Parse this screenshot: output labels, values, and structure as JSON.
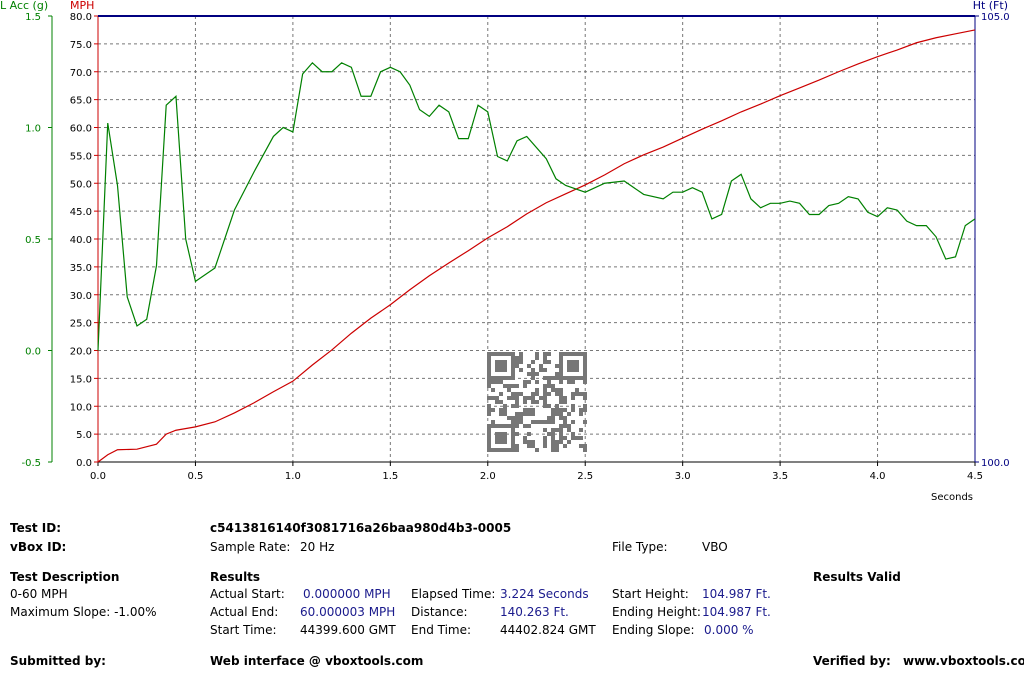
{
  "chart_data": {
    "type": "line",
    "xlabel": "Seconds",
    "ylabel": "MPH",
    "y2label": "L Acc (g)",
    "y3label": "Ht (Ft)",
    "xlim": [
      0,
      4.5
    ],
    "xticks": [
      {
        "value": 0,
        "label": "0.0"
      },
      0.5,
      {
        "value": 1,
        "label": "1.0"
      },
      1.5,
      {
        "value": 2,
        "label": "2.0"
      },
      2.5,
      {
        "value": 3,
        "label": "3.0"
      },
      3.5,
      {
        "value": 4,
        "label": "4.0"
      },
      4.5
    ],
    "ylim": [
      0,
      80
    ],
    "yticks": [
      {
        "value": 0,
        "label": "0.0"
      },
      {
        "value": 5,
        "label": "5.0"
      },
      {
        "value": 10,
        "label": "10.0"
      },
      {
        "value": 15,
        "label": "15.0"
      },
      {
        "value": 20,
        "label": "20.0"
      },
      {
        "value": 25,
        "label": "25.0"
      },
      {
        "value": 30,
        "label": "30.0"
      },
      {
        "value": 35,
        "label": "35.0"
      },
      {
        "value": 40,
        "label": "40.0"
      },
      {
        "value": 45,
        "label": "45.0"
      },
      {
        "value": 50,
        "label": "50.0"
      },
      {
        "value": 55,
        "label": "55.0"
      },
      {
        "value": 60,
        "label": "60.0"
      },
      {
        "value": 65,
        "label": "65.0"
      },
      {
        "value": 70,
        "label": "70.0"
      },
      {
        "value": 75,
        "label": "75.0"
      },
      {
        "value": 80,
        "label": "80.0"
      }
    ],
    "y2lim": [
      -0.5,
      1.5
    ],
    "y2ticks": [
      -0.5,
      {
        "value": 0,
        "label": "0.0"
      },
      0.5,
      {
        "value": 1,
        "label": "1.0"
      },
      1.5
    ],
    "y3lim": [
      100,
      105
    ],
    "y3ticks": [
      {
        "value": 100,
        "label": "100.0"
      },
      {
        "value": 105,
        "label": "105.0"
      }
    ],
    "grid": true,
    "ycolor": "#cc0000",
    "y2color": "#008000",
    "y3color": "#000080",
    "series": [
      {
        "color": "#cc0000",
        "x": [
          0,
          0.05,
          0.1,
          0.2,
          0.3,
          0.35,
          0.4,
          0.5,
          0.6,
          0.7,
          0.8,
          0.9,
          1.0,
          1.1,
          1.2,
          1.3,
          1.4,
          1.5,
          1.6,
          1.7,
          1.8,
          1.9,
          2.0,
          2.1,
          2.2,
          2.3,
          2.4,
          2.5,
          2.6,
          2.7,
          2.8,
          2.9,
          3.0,
          3.1,
          3.2,
          3.3,
          3.4,
          3.5,
          3.6,
          3.7,
          3.8,
          3.9,
          4.0,
          4.1,
          4.2,
          4.3,
          4.4,
          4.5
        ],
        "values": [
          0,
          1.3,
          2.2,
          2.3,
          3.2,
          5.0,
          5.7,
          6.3,
          7.2,
          8.8,
          10.6,
          12.6,
          14.5,
          17.4,
          20.1,
          23.1,
          25.8,
          28.2,
          30.9,
          33.4,
          35.7,
          37.9,
          40.2,
          42.2,
          44.5,
          46.5,
          48.1,
          49.7,
          51.5,
          53.5,
          55.1,
          56.5,
          58.1,
          59.7,
          61.2,
          62.8,
          64.2,
          65.7,
          67.1,
          68.5,
          70.0,
          71.4,
          72.7,
          73.9,
          75.2,
          76.1,
          76.8,
          77.5
        ]
      },
      {
        "color": "#008000",
        "axis": "y2",
        "x": [
          0,
          0.05,
          0.1,
          0.15,
          0.2,
          0.25,
          0.3,
          0.35,
          0.4,
          0.45,
          0.5,
          0.6,
          0.7,
          0.8,
          0.9,
          0.95,
          1.0,
          1.05,
          1.1,
          1.15,
          1.2,
          1.25,
          1.3,
          1.35,
          1.4,
          1.45,
          1.5,
          1.55,
          1.6,
          1.65,
          1.7,
          1.75,
          1.8,
          1.85,
          1.9,
          1.95,
          2.0,
          2.05,
          2.1,
          2.15,
          2.2,
          2.3,
          2.35,
          2.4,
          2.5,
          2.6,
          2.7,
          2.8,
          2.9,
          2.95,
          3.0,
          3.05,
          3.1,
          3.15,
          3.2,
          3.25,
          3.3,
          3.35,
          3.4,
          3.45,
          3.5,
          3.55,
          3.6,
          3.65,
          3.7,
          3.75,
          3.8,
          3.85,
          3.9,
          3.95,
          4.0,
          4.05,
          4.1,
          4.15,
          4.2,
          4.25,
          4.3,
          4.35,
          4.4,
          4.45,
          4.5
        ],
        "values": [
          0.0,
          1.02,
          0.74,
          0.24,
          0.11,
          0.14,
          0.38,
          1.1,
          1.14,
          0.5,
          0.31,
          0.37,
          0.63,
          0.8,
          0.96,
          1.0,
          0.98,
          1.24,
          1.29,
          1.25,
          1.25,
          1.29,
          1.27,
          1.14,
          1.14,
          1.25,
          1.27,
          1.25,
          1.19,
          1.08,
          1.05,
          1.1,
          1.07,
          0.95,
          0.95,
          1.1,
          1.07,
          0.87,
          0.85,
          0.94,
          0.96,
          0.86,
          0.77,
          0.74,
          0.71,
          0.75,
          0.76,
          0.7,
          0.68,
          0.71,
          0.71,
          0.73,
          0.71,
          0.59,
          0.61,
          0.76,
          0.79,
          0.68,
          0.64,
          0.66,
          0.66,
          0.67,
          0.66,
          0.61,
          0.61,
          0.65,
          0.66,
          0.69,
          0.68,
          0.62,
          0.6,
          0.64,
          0.63,
          0.58,
          0.56,
          0.56,
          0.51,
          0.41,
          0.42,
          0.56,
          0.59
        ]
      }
    ]
  },
  "report": {
    "test_id_label": "Test ID:",
    "test_id": "c5413816140f3081716a26baa980d4b3-0005",
    "vbox_id_label": "vBox ID:",
    "sample_rate_label": "Sample Rate:",
    "sample_rate": "20 Hz",
    "file_type_label": "File Type:",
    "file_type": "VBO",
    "description_label": "Test Description",
    "description": "0-60 MPH",
    "max_slope": "Maximum Slope:  -1.00%",
    "results_label": "Results",
    "results_valid": "Results Valid",
    "actual_start_label": "Actual Start:",
    "actual_start": "0.000000 MPH",
    "actual_end_label": "Actual End:",
    "actual_end": "60.000003 MPH",
    "start_time_label": "Start Time:",
    "start_time": "44399.600 GMT",
    "elapsed_label": "Elapsed Time:",
    "elapsed": "3.224 Seconds",
    "distance_label": "Distance:",
    "distance": "140.263 Ft.",
    "end_time_label": "End Time:",
    "end_time": "44402.824 GMT",
    "start_height_label": "Start Height:",
    "start_height": "104.987 Ft.",
    "ending_height_label": "Ending Height:",
    "ending_height": "104.987 Ft.",
    "ending_slope_label": "Ending Slope:",
    "ending_slope": "0.000 %",
    "submitted_label": "Submitted by:",
    "web": "Web interface @ vboxtools.com",
    "verified_label": "Verified by:",
    "site": "www.vboxtools.com"
  }
}
